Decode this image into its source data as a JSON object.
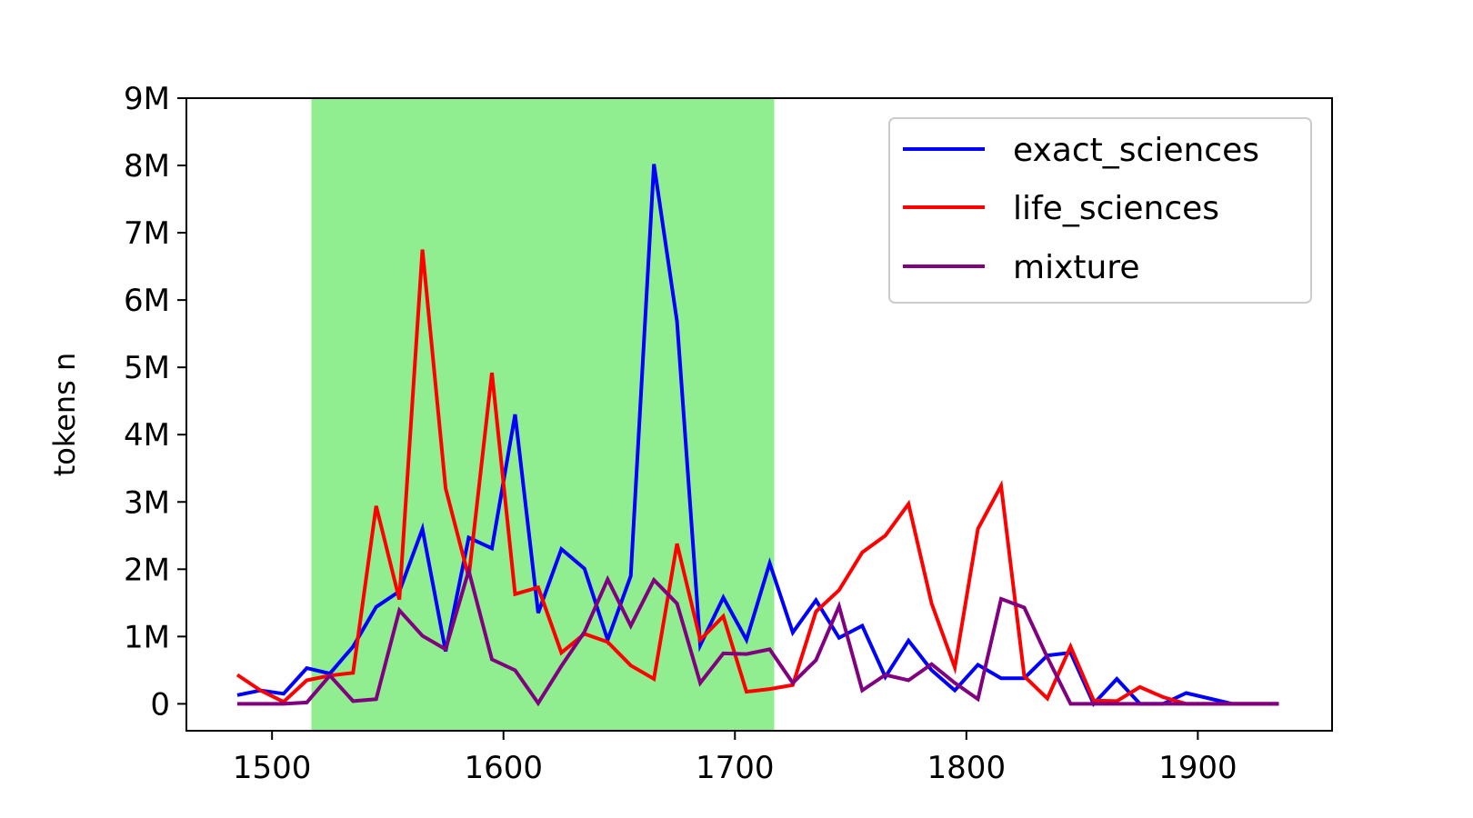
{
  "chart_data": {
    "type": "line",
    "title": "",
    "xlabel": "",
    "ylabel": "tokens n",
    "xlim": [
      1463,
      1958
    ],
    "ylim": [
      -400000,
      9000000
    ],
    "x_ticks": [
      1500,
      1600,
      1700,
      1800,
      1900
    ],
    "x_tick_labels": [
      "1500",
      "1600",
      "1700",
      "1800",
      "1900"
    ],
    "y_ticks": [
      0,
      1000000,
      2000000,
      3000000,
      4000000,
      5000000,
      6000000,
      7000000,
      8000000,
      9000000
    ],
    "y_tick_labels": [
      "0",
      "1M",
      "2M",
      "3M",
      "4M",
      "5M",
      "6M",
      "7M",
      "8M",
      "9M"
    ],
    "grid": false,
    "legend_position": "top-right",
    "highlight_span": {
      "x0": 1517,
      "x1": 1717,
      "color": "#90ee90"
    },
    "x": [
      1485,
      1495,
      1505,
      1515,
      1525,
      1535,
      1545,
      1555,
      1565,
      1575,
      1585,
      1595,
      1605,
      1615,
      1625,
      1635,
      1645,
      1655,
      1665,
      1675,
      1685,
      1695,
      1705,
      1715,
      1725,
      1735,
      1745,
      1755,
      1765,
      1775,
      1785,
      1795,
      1805,
      1815,
      1825,
      1835,
      1845,
      1855,
      1865,
      1875,
      1885,
      1895,
      1905,
      1915,
      1925,
      1935
    ],
    "series": [
      {
        "name": "exact_sciences",
        "color": "#0000ff",
        "values": [
          130000,
          200000,
          150000,
          530000,
          450000,
          850000,
          1440000,
          1670000,
          2600000,
          780000,
          2470000,
          2310000,
          4300000,
          1350000,
          2300000,
          2010000,
          950000,
          1900000,
          8020000,
          5680000,
          870000,
          1580000,
          950000,
          2090000,
          1060000,
          1540000,
          980000,
          1160000,
          400000,
          940000,
          500000,
          200000,
          580000,
          380000,
          380000,
          720000,
          760000,
          0,
          370000,
          0,
          0,
          160000,
          80000,
          0,
          0,
          0
        ]
      },
      {
        "name": "life_sciences",
        "color": "#ff0000",
        "values": [
          430000,
          200000,
          30000,
          350000,
          420000,
          460000,
          2940000,
          1550000,
          6750000,
          3200000,
          1880000,
          4920000,
          1630000,
          1730000,
          760000,
          1040000,
          920000,
          570000,
          370000,
          2380000,
          950000,
          1300000,
          180000,
          220000,
          280000,
          1370000,
          1690000,
          2250000,
          2500000,
          2970000,
          1490000,
          540000,
          2600000,
          3240000,
          410000,
          80000,
          850000,
          50000,
          40000,
          250000,
          100000,
          0,
          0,
          0,
          0,
          0
        ]
      },
      {
        "name": "mixture",
        "color": "#800080",
        "values": [
          0,
          0,
          0,
          20000,
          420000,
          40000,
          70000,
          1390000,
          1010000,
          810000,
          1980000,
          660000,
          500000,
          10000,
          560000,
          1070000,
          1850000,
          1160000,
          1840000,
          1490000,
          310000,
          750000,
          740000,
          810000,
          310000,
          650000,
          1450000,
          200000,
          430000,
          350000,
          590000,
          310000,
          70000,
          1560000,
          1430000,
          690000,
          0,
          0,
          0,
          0,
          0,
          0,
          0,
          0,
          0,
          0
        ]
      }
    ]
  }
}
